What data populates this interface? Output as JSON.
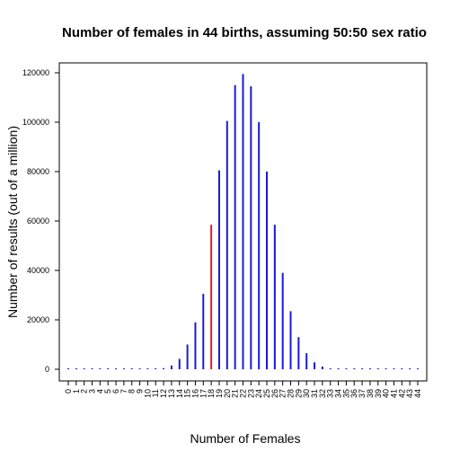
{
  "chart_data": {
    "type": "bar",
    "title": "Number of females in 44 births, assuming 50:50 sex ratio",
    "xlabel": "Number of Females",
    "ylabel": "Number of results (out of a million)",
    "ylim": [
      0,
      120000
    ],
    "yticks": [
      0,
      20000,
      40000,
      60000,
      80000,
      100000,
      120000
    ],
    "grid": false,
    "highlight_index": 18,
    "colors": {
      "bar": "#1a1ad4",
      "highlight": "#dd2222",
      "axis": "#000000"
    },
    "x": [
      0,
      1,
      2,
      3,
      4,
      5,
      6,
      7,
      8,
      9,
      10,
      11,
      12,
      13,
      14,
      15,
      16,
      17,
      18,
      19,
      20,
      21,
      22,
      23,
      24,
      25,
      26,
      27,
      28,
      29,
      30,
      31,
      32,
      33,
      34,
      35,
      36,
      37,
      38,
      39,
      40,
      41,
      42,
      43,
      44
    ],
    "values": [
      0,
      0,
      0,
      0,
      0,
      0,
      0,
      0,
      0,
      0,
      20,
      100,
      450,
      1500,
      4200,
      10000,
      19000,
      30500,
      58500,
      80500,
      100500,
      115000,
      119500,
      114500,
      100000,
      80000,
      58500,
      39000,
      23500,
      13000,
      6500,
      2800,
      1100,
      350,
      100,
      0,
      0,
      0,
      0,
      0,
      0,
      0,
      0,
      0,
      0
    ]
  }
}
